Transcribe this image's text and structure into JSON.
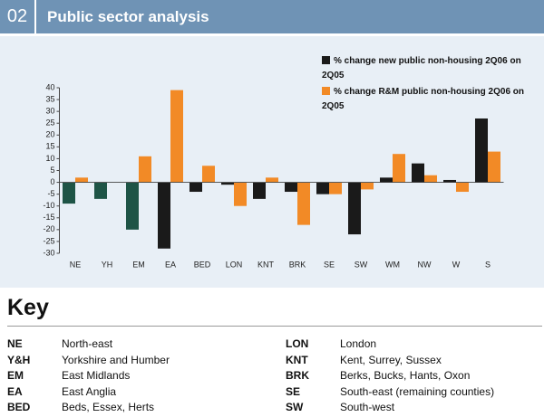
{
  "header": {
    "number": "02",
    "title": "Public sector analysis"
  },
  "chart_data": {
    "type": "bar",
    "categories": [
      "NE",
      "YH",
      "EM",
      "EA",
      "BED",
      "LON",
      "KNT",
      "BRK",
      "SE",
      "SW",
      "WM",
      "NW",
      "W",
      "S"
    ],
    "series": [
      {
        "name": "% change new public non-housing 2Q06 on 2Q05",
        "color": "#1a1a1a",
        "colors": [
          "#1e5446",
          "#1e5446",
          "#1e5446",
          "#1a1a1a",
          "#1a1a1a",
          "#1a1a1a",
          "#1a1a1a",
          "#1a1a1a",
          "#1a1a1a",
          "#1a1a1a",
          "#1a1a1a",
          "#1a1a1a",
          "#1a1a1a",
          "#1a1a1a"
        ],
        "values": [
          -9,
          -7,
          -20,
          -28,
          -4,
          -1,
          -7,
          -4,
          -5,
          -22,
          2,
          8,
          1,
          27
        ]
      },
      {
        "name": "% change R&M public non-housing 2Q06 on 2Q05",
        "color": "#f28a26",
        "values": [
          2,
          null,
          11,
          39,
          7,
          -10,
          2,
          -18,
          -5,
          -3,
          12,
          3,
          -4,
          13
        ]
      }
    ],
    "ylim": [
      -30,
      40
    ],
    "yticks": [
      40,
      35,
      30,
      25,
      20,
      15,
      10,
      5,
      0,
      -5,
      -10,
      -15,
      -20,
      -25,
      -30
    ],
    "grid": false,
    "legend": "top-right"
  },
  "key": {
    "title": "Key",
    "left": [
      [
        "NE",
        "North-east"
      ],
      [
        "Y&H",
        "Yorkshire and Humber"
      ],
      [
        "EM",
        "East Midlands"
      ],
      [
        "EA",
        "East Anglia"
      ],
      [
        "BED",
        "Beds, Essex, Herts"
      ]
    ],
    "right": [
      [
        "LON",
        "London"
      ],
      [
        "KNT",
        "Kent, Surrey, Sussex"
      ],
      [
        "BRK",
        "Berks, Bucks, Hants, Oxon"
      ],
      [
        "SE",
        "South-east (remaining counties)"
      ],
      [
        "SW",
        "South-west"
      ]
    ]
  }
}
